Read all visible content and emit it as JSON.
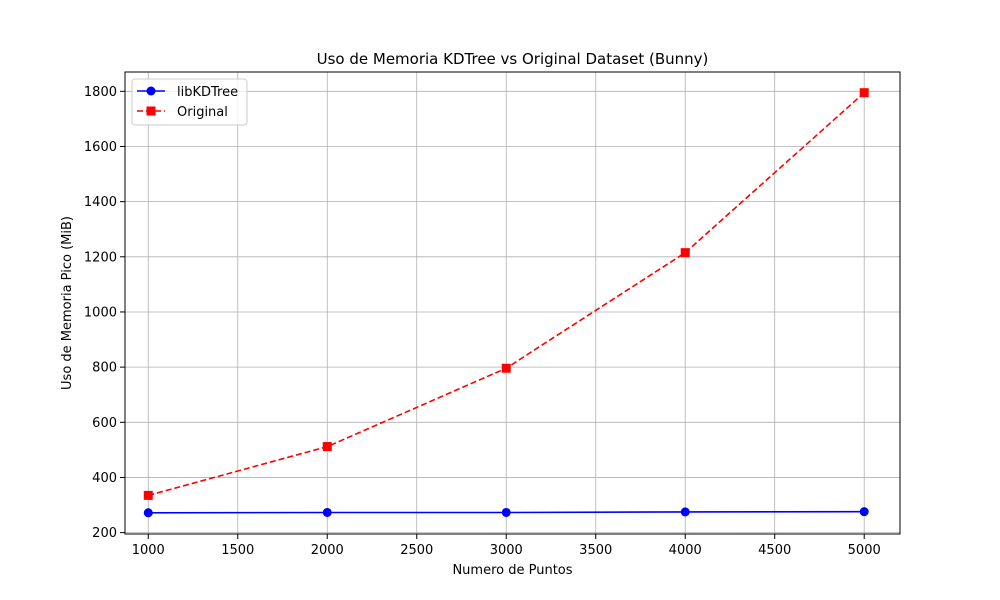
{
  "chart_data": {
    "type": "line",
    "title": "Uso de Memoria KDTree vs Original Dataset (Bunny)",
    "xlabel": "Numero de Puntos",
    "ylabel": "Uso de Memoria Pico (MiB)",
    "x": [
      1000,
      2000,
      3000,
      4000,
      5000
    ],
    "xlim": [
      870,
      5200
    ],
    "ylim": [
      195,
      1870
    ],
    "xticks": [
      1000,
      1500,
      2000,
      2500,
      3000,
      3500,
      4000,
      4500,
      5000
    ],
    "yticks": [
      200,
      400,
      600,
      800,
      1000,
      1200,
      1400,
      1600,
      1800
    ],
    "grid": true,
    "legend_position": "top-left",
    "series": [
      {
        "name": "libKDTree",
        "values": [
          272,
          273,
          273,
          275,
          276
        ],
        "color": "#0000ff",
        "linestyle": "solid",
        "marker": "circle"
      },
      {
        "name": "Original",
        "values": [
          335,
          512,
          796,
          1215,
          1795
        ],
        "color": "#ff0000",
        "linestyle": "dashed",
        "marker": "square"
      }
    ]
  }
}
